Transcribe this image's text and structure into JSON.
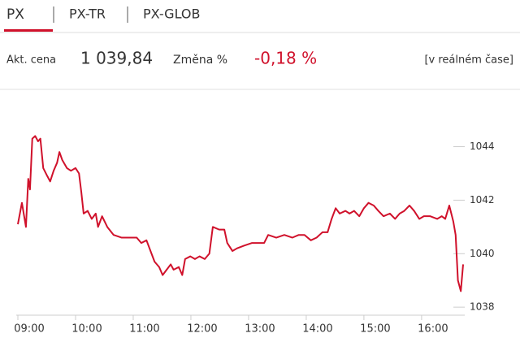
{
  "tabs": [
    "PX",
    "PX-TR",
    "PX-GLOB"
  ],
  "quote": {
    "price_label": "Akt. cena",
    "price": "1 039,84",
    "change_label": "Změna %",
    "change": "-0,18 %",
    "realtime": "[v reálném čase]"
  },
  "chart_data": {
    "type": "line",
    "x": [
      9.0,
      9.07,
      9.14,
      9.18,
      9.21,
      9.25,
      9.3,
      9.35,
      9.39,
      9.44,
      9.51,
      9.56,
      9.62,
      9.68,
      9.72,
      9.77,
      9.85,
      9.92,
      10.0,
      10.06,
      10.1,
      10.14,
      10.21,
      10.28,
      10.35,
      10.39,
      10.46,
      10.55,
      10.66,
      10.8,
      10.94,
      11.06,
      11.14,
      11.23,
      11.3,
      11.37,
      11.45,
      11.51,
      11.58,
      11.65,
      11.7,
      11.79,
      11.85,
      11.9,
      11.99,
      12.07,
      12.15,
      12.24,
      12.32,
      12.38,
      12.49,
      12.58,
      12.63,
      12.72,
      12.8,
      12.92,
      13.06,
      13.17,
      13.27,
      13.34,
      13.48,
      13.62,
      13.76,
      13.87,
      13.97,
      14.08,
      14.18,
      14.28,
      14.37,
      14.44,
      14.51,
      14.58,
      14.68,
      14.75,
      14.83,
      14.92,
      15.0,
      15.08,
      15.17,
      15.25,
      15.34,
      15.45,
      15.54,
      15.62,
      15.7,
      15.79,
      15.87,
      15.96,
      16.04,
      16.15,
      16.27,
      16.35,
      16.41,
      16.48,
      16.55,
      16.59,
      16.63,
      16.68,
      16.72
    ],
    "series": [
      {
        "name": "PX",
        "color": "#d0112b",
        "values": [
          1041.1,
          1041.9,
          1041.0,
          1042.8,
          1042.4,
          1044.3,
          1044.4,
          1044.2,
          1044.3,
          1043.2,
          1042.9,
          1042.7,
          1043.1,
          1043.4,
          1043.8,
          1043.5,
          1043.2,
          1043.1,
          1043.2,
          1043.0,
          1042.3,
          1041.5,
          1041.6,
          1041.3,
          1041.5,
          1041.0,
          1041.4,
          1041.0,
          1040.7,
          1040.6,
          1040.6,
          1040.6,
          1040.4,
          1040.5,
          1040.1,
          1039.7,
          1039.5,
          1039.2,
          1039.4,
          1039.6,
          1039.4,
          1039.5,
          1039.2,
          1039.8,
          1039.9,
          1039.8,
          1039.9,
          1039.8,
          1040.0,
          1041.0,
          1040.9,
          1040.9,
          1040.4,
          1040.1,
          1040.2,
          1040.3,
          1040.4,
          1040.4,
          1040.4,
          1040.7,
          1040.6,
          1040.7,
          1040.6,
          1040.7,
          1040.7,
          1040.5,
          1040.6,
          1040.8,
          1040.8,
          1041.3,
          1041.7,
          1041.5,
          1041.6,
          1041.5,
          1041.6,
          1041.4,
          1041.7,
          1041.9,
          1041.8,
          1041.6,
          1041.4,
          1041.5,
          1041.3,
          1041.5,
          1041.6,
          1041.8,
          1041.6,
          1041.3,
          1041.4,
          1041.4,
          1041.3,
          1041.4,
          1041.3,
          1041.8,
          1041.2,
          1040.7,
          1039.0,
          1038.6,
          1039.6
        ]
      }
    ],
    "xlim": [
      9,
      16.72
    ],
    "xticks": [
      {
        "value": 9,
        "label": "09:00"
      },
      {
        "value": 10,
        "label": "10:00"
      },
      {
        "value": 11,
        "label": "11:00"
      },
      {
        "value": 12,
        "label": "12:00"
      },
      {
        "value": 13,
        "label": "13:00"
      },
      {
        "value": 14,
        "label": "14:00"
      },
      {
        "value": 15,
        "label": "15:00"
      },
      {
        "value": 16,
        "label": "16:00"
      }
    ],
    "ylim": [
      1037.7,
      1045.9
    ],
    "yticks": [
      1038,
      1040,
      1042,
      1044
    ]
  }
}
